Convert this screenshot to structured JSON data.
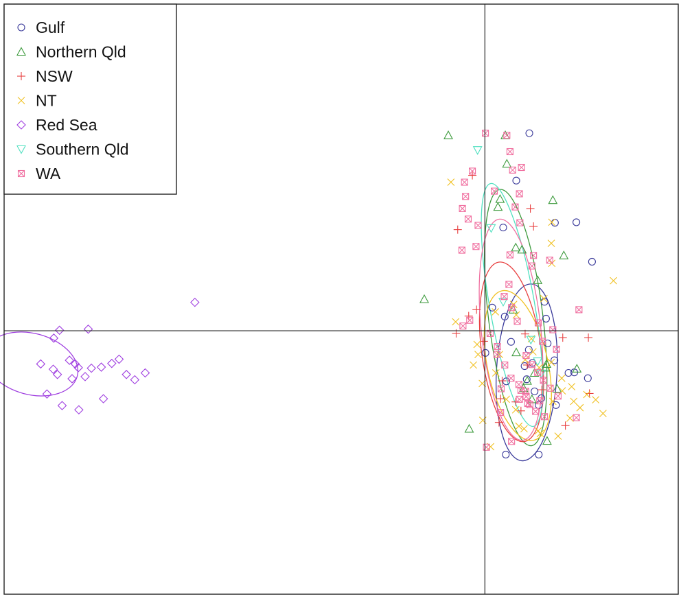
{
  "chart_data": {
    "type": "scatter",
    "title": "",
    "xlabel": "",
    "ylabel": "",
    "xlim": [
      -0.92,
      0.37
    ],
    "ylim": [
      -0.5,
      0.62
    ],
    "axes_lines": {
      "x": 0,
      "y": 0
    },
    "grid": false,
    "legend_position": "top-left",
    "series": [
      {
        "name": "Gulf",
        "marker": "circle",
        "color": "#3a3a9a",
        "ellipse": {
          "cx": 0.08,
          "cy": -0.079,
          "rx": 0.058,
          "ry": 0.168,
          "angle": 3
        },
        "x": [
          0.085,
          0.205,
          0.134,
          0.175,
          0.014,
          0.06,
          0.035,
          0.08,
          0.117,
          0.108,
          0.095,
          0.16,
          0.197,
          0.041,
          0.076,
          0.001,
          0.12,
          0.091,
          0.084,
          0.136,
          0.05,
          0.114,
          0.04,
          0.103,
          0.038,
          0.103,
          0.133,
          0.171
        ],
        "y": [
          0.375,
          0.131,
          0.205,
          0.206,
          0.044,
          0.285,
          0.196,
          -0.092,
          0.023,
          -0.128,
          -0.115,
          -0.08,
          -0.09,
          -0.096,
          -0.067,
          -0.042,
          -0.024,
          -0.061,
          -0.036,
          -0.141,
          -0.021,
          0.055,
          -0.235,
          -0.235,
          0.027,
          -0.141,
          -0.056,
          -0.079
        ]
      },
      {
        "name": "Northern Qld",
        "marker": "triangle",
        "color": "#3c9a3c",
        "ellipse": {
          "cx": 0.059,
          "cy": 0.025,
          "rx": 0.052,
          "ry": 0.245,
          "angle": -7
        },
        "x": [
          -0.07,
          0.039,
          0.042,
          0.029,
          0.025,
          0.13,
          0.071,
          0.059,
          0.101,
          0.151,
          0.116,
          0.118,
          0.074,
          -0.116,
          -0.03,
          0.054,
          0.138,
          0.095,
          0.081,
          0.176,
          0.06,
          0.09,
          0.119
        ],
        "y": [
          0.371,
          0.371,
          0.317,
          0.25,
          0.235,
          0.248,
          0.154,
          0.158,
          0.096,
          0.143,
          -0.07,
          -0.063,
          -0.109,
          0.06,
          -0.186,
          0.04,
          -0.11,
          -0.08,
          -0.095,
          -0.072,
          -0.041,
          -0.13,
          -0.209
        ]
      },
      {
        "name": "NSW",
        "marker": "plus",
        "color": "#e84040",
        "ellipse": {
          "cx": 0.051,
          "cy": -0.04,
          "rx": 0.057,
          "ry": 0.172,
          "angle": -8
        },
        "x": [
          -0.052,
          -0.024,
          0.087,
          0.093,
          -0.031,
          -0.055,
          -0.016,
          0.149,
          0.059,
          0.077,
          0.198,
          0.2,
          0.027,
          0.03,
          0.081,
          -0.002,
          0.033,
          0.069,
          0.109,
          0.154
        ],
        "y": [
          0.192,
          0.295,
          0.232,
          0.198,
          0.028,
          -0.005,
          0.04,
          -0.013,
          -0.135,
          -0.006,
          -0.013,
          -0.119,
          -0.174,
          -0.129,
          -0.065,
          -0.02,
          -0.095,
          -0.152,
          -0.112,
          -0.18
        ]
      },
      {
        "name": "NT",
        "marker": "cross",
        "color": "#f0c020",
        "ellipse": {
          "cx": 0.063,
          "cy": -0.066,
          "rx": 0.058,
          "ry": 0.145,
          "angle": -12
        },
        "x": [
          -0.065,
          0.127,
          0.246,
          0.128,
          0.128,
          0.02,
          0.06,
          0.089,
          0.113,
          -0.056,
          -0.015,
          -0.013,
          -0.022,
          0.021,
          0.077,
          0.104,
          0.127,
          0.147,
          0.166,
          0.195,
          0.226,
          0.182,
          -0.005,
          0.041,
          0.059,
          0.065,
          0.102,
          0.13,
          0.148,
          0.17,
          0.212,
          0.075,
          0.106,
          0.14,
          0.163,
          0.011,
          -0.004,
          0.028,
          0.092,
          0.055
        ],
        "y": [
          0.282,
          0.166,
          0.095,
          0.206,
          0.128,
          0.036,
          0.03,
          -0.015,
          0.061,
          0.017,
          -0.026,
          -0.045,
          -0.065,
          -0.08,
          -0.055,
          -0.07,
          -0.06,
          -0.09,
          -0.106,
          -0.121,
          -0.157,
          -0.146,
          -0.1,
          -0.13,
          -0.15,
          -0.181,
          -0.19,
          -0.134,
          -0.114,
          -0.134,
          -0.131,
          -0.186,
          -0.195,
          -0.2,
          -0.166,
          -0.22,
          -0.17,
          -0.045,
          -0.04,
          0.05
        ]
      },
      {
        "name": "Red Sea",
        "marker": "diamond",
        "color": "#a040e0",
        "ellipse": {
          "cx": -0.868,
          "cy": -0.063,
          "rx": 0.091,
          "ry": 0.058,
          "angle": 15
        },
        "x": [
          -0.555,
          -0.759,
          -0.814,
          -0.825,
          -0.795,
          -0.784,
          -0.826,
          -0.818,
          -0.778,
          -0.85,
          -0.765,
          -0.79,
          -0.838,
          -0.809,
          -0.777,
          -0.73,
          -0.67,
          -0.65,
          -0.686,
          -0.714,
          -0.7,
          -0.734,
          -0.753
        ],
        "y": [
          0.054,
          0.003,
          0.001,
          -0.014,
          -0.056,
          -0.063,
          -0.073,
          -0.083,
          -0.07,
          -0.063,
          -0.087,
          -0.091,
          -0.12,
          -0.142,
          -0.15,
          -0.129,
          -0.093,
          -0.08,
          -0.083,
          -0.062,
          -0.054,
          -0.069,
          -0.071
        ]
      },
      {
        "name": "Southern Qld",
        "marker": "triangle-down",
        "color": "#50e0c0",
        "ellipse": {
          "cx": 0.052,
          "cy": 0.049,
          "rx": 0.043,
          "ry": 0.234,
          "angle": -10
        },
        "x": [
          -0.014,
          0.012,
          0.035,
          0.088,
          0.101,
          0.108
        ],
        "y": [
          0.343,
          0.195,
          0.055,
          -0.017,
          -0.058,
          -0.081
        ]
      },
      {
        "name": "WA",
        "marker": "square-cross",
        "color": "#f070a0",
        "ellipse": {
          "cx": 0.05,
          "cy": 0.002,
          "rx": 0.057,
          "ry": 0.211,
          "angle": -6
        },
        "x": [
          0.001,
          0.042,
          0.048,
          0.07,
          -0.024,
          -0.039,
          -0.037,
          0.018,
          0.053,
          -0.043,
          -0.032,
          -0.044,
          -0.013,
          -0.017,
          0.048,
          0.067,
          0.066,
          0.09,
          0.102,
          0.13,
          0.11,
          0.137,
          0.01,
          0.024,
          0.037,
          0.051,
          0.062,
          0.079,
          0.09,
          0.101,
          0.112,
          0.125,
          0.14,
          0.058,
          0.093,
          0.065,
          0.078,
          0.079,
          0.086,
          0.105,
          -0.029,
          -0.042,
          0.023,
          0.038,
          0.05,
          0.069,
          0.082,
          0.097,
          0.114,
          0.124,
          0.18,
          0.175,
          0.03,
          0.051,
          0.003,
          0.066,
          0.031,
          0.046
        ],
        "y": [
          0.375,
          0.371,
          0.34,
          0.31,
          0.303,
          0.282,
          0.255,
          0.265,
          0.305,
          0.232,
          0.212,
          0.153,
          0.2,
          0.16,
          0.144,
          0.205,
          0.26,
          0.123,
          0.015,
          0.002,
          -0.02,
          -0.035,
          -0.005,
          -0.03,
          0.065,
          0.044,
          0.018,
          -0.047,
          -0.064,
          -0.079,
          -0.094,
          -0.109,
          -0.124,
          0.235,
          0.143,
          -0.102,
          -0.115,
          -0.125,
          -0.14,
          -0.133,
          0.02,
          0.009,
          -0.045,
          -0.065,
          -0.09,
          -0.113,
          -0.138,
          -0.153,
          -0.163,
          0.134,
          0.04,
          -0.165,
          -0.155,
          -0.21,
          -0.221,
          -0.13,
          -0.11,
          0.088
        ]
      }
    ]
  }
}
